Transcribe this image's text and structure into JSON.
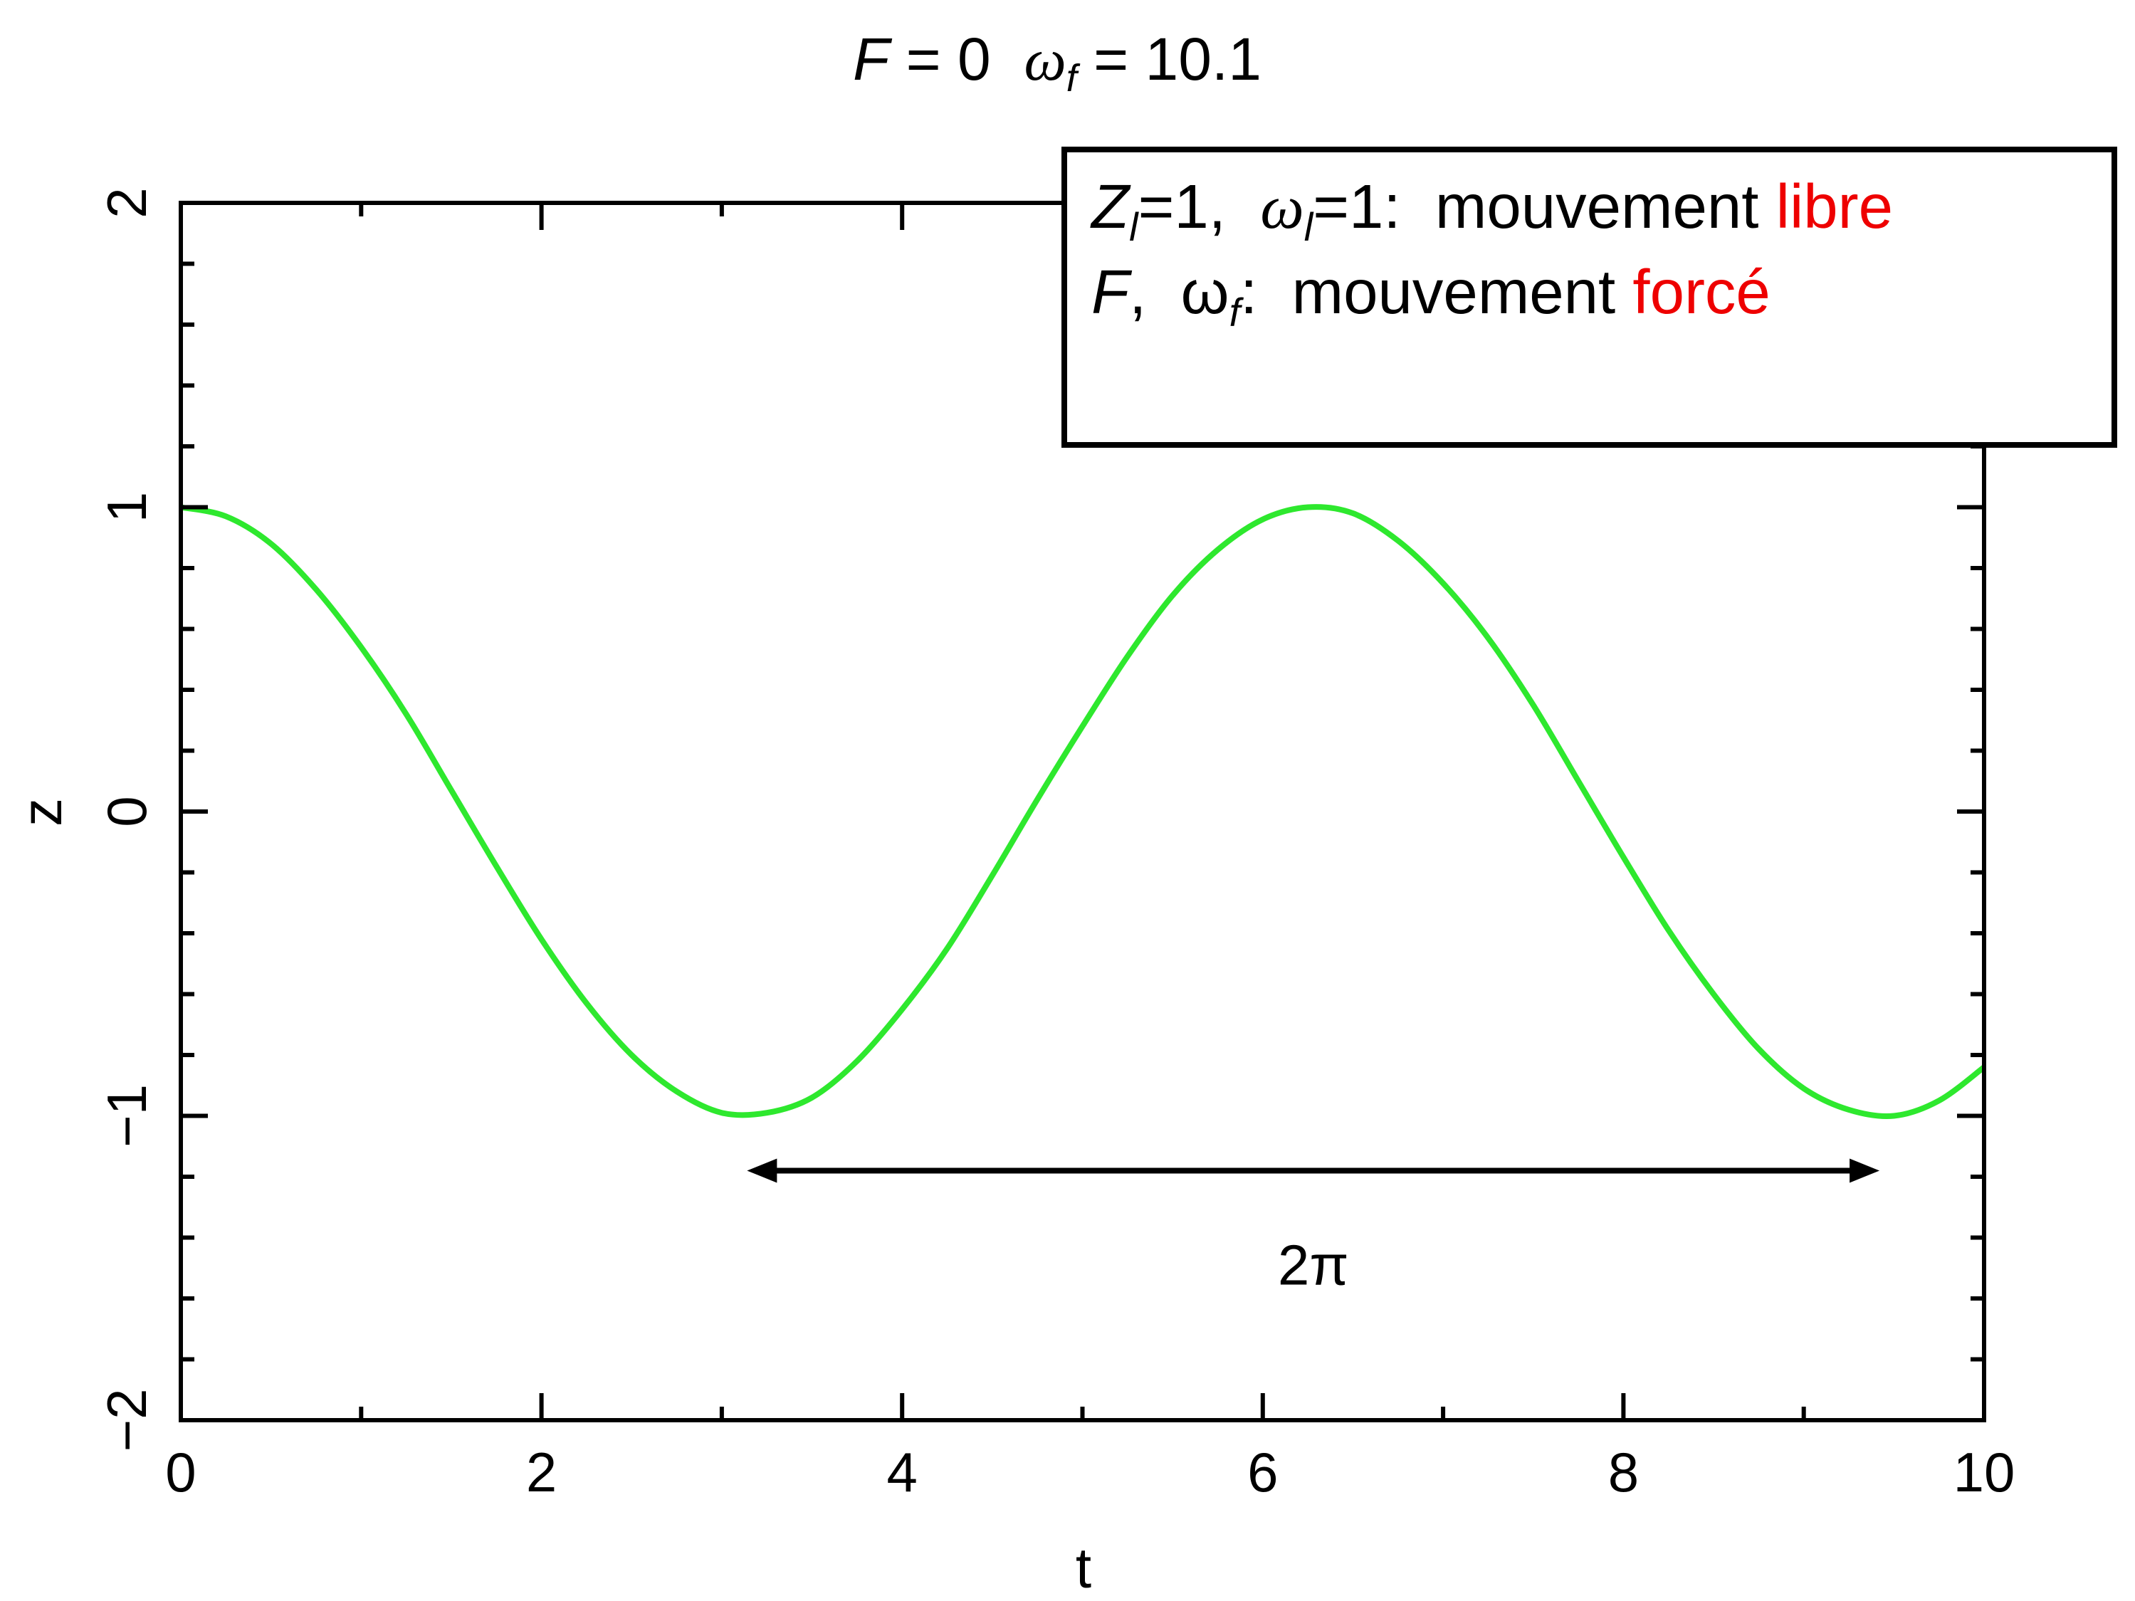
{
  "chart_data": {
    "type": "line",
    "title_parts": [
      "F",
      " = 0  ",
      "ω",
      "f",
      " = 10.1"
    ],
    "xlabel": "t",
    "ylabel": "z",
    "x": [
      0,
      0.25,
      0.5,
      0.75,
      1,
      1.25,
      1.5,
      1.75,
      2,
      2.25,
      2.5,
      2.75,
      3,
      3.25,
      3.5,
      3.75,
      4,
      4.25,
      4.5,
      4.75,
      5,
      5.25,
      5.5,
      5.75,
      6,
      6.25,
      6.5,
      6.75,
      7,
      7.25,
      7.5,
      7.75,
      8,
      8.25,
      8.5,
      8.75,
      9,
      9.25,
      9.5,
      9.75,
      10
    ],
    "series": [
      {
        "color": "#2ee82e",
        "values": [
          1,
          0.97,
          0.88,
          0.73,
          0.54,
          0.32,
          0.07,
          -0.18,
          -0.42,
          -0.63,
          -0.8,
          -0.92,
          -0.99,
          -0.99,
          -0.94,
          -0.82,
          -0.65,
          -0.45,
          -0.21,
          0.04,
          0.28,
          0.51,
          0.71,
          0.86,
          0.96,
          1,
          0.98,
          0.89,
          0.75,
          0.57,
          0.35,
          0.1,
          -0.15,
          -0.39,
          -0.6,
          -0.78,
          -0.91,
          -0.98,
          -1,
          -0.95,
          -0.84
        ]
      }
    ],
    "xlim": [
      0,
      10
    ],
    "ylim": [
      -2,
      2
    ],
    "xticks": [
      0,
      2,
      4,
      6,
      8,
      10
    ],
    "yticks": [
      {
        "value": -2,
        "label": "−2"
      },
      {
        "value": -1,
        "label": "−1"
      },
      0,
      1,
      2
    ],
    "xminorticks": [
      1,
      3,
      5,
      7,
      9
    ],
    "yminorticks": [
      -1.8,
      -1.6,
      -1.4,
      -1.2,
      -0.8,
      -0.6,
      -0.4,
      -0.2,
      0.2,
      0.4,
      0.6,
      0.8,
      1.2,
      1.4,
      1.6,
      1.8
    ],
    "arrow": {
      "x": [
        3.14,
        9.42
      ],
      "y": -1.18,
      "label": "2π"
    },
    "legend_box": {
      "line1": [
        "Z",
        "l",
        "=1,  ",
        "ω",
        "l",
        "=1:  mouvement ",
        "libre"
      ],
      "line2": [
        "F",
        ",  ω",
        "f",
        ":  mouvement ",
        "forcé"
      ]
    }
  }
}
